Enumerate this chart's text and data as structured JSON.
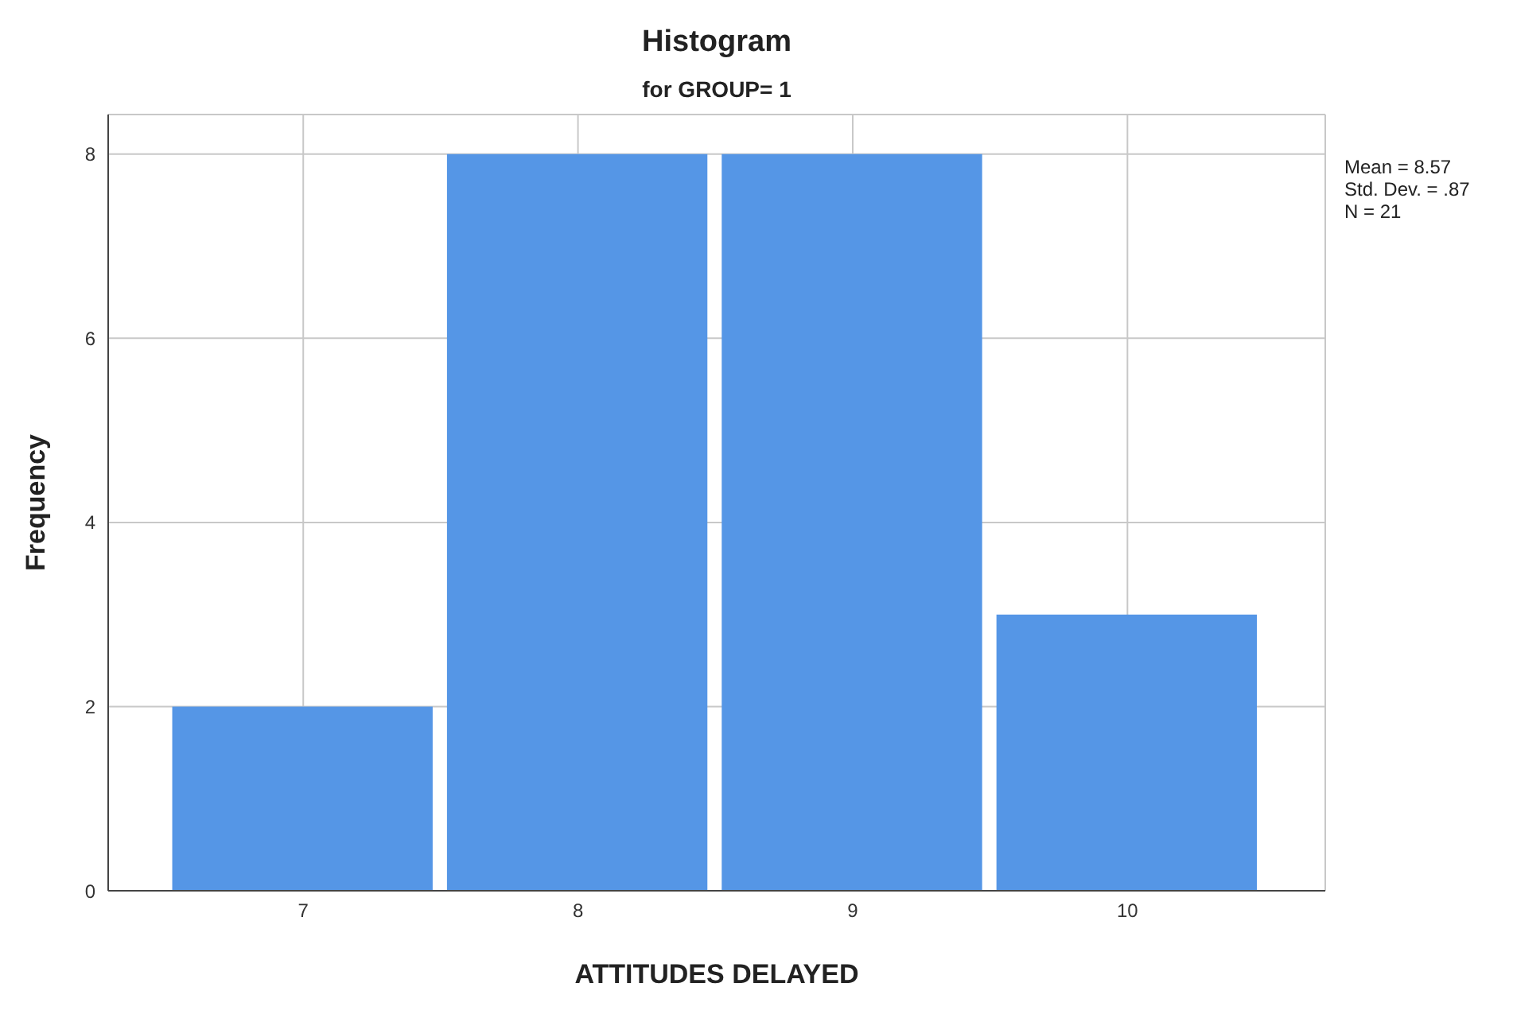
{
  "chart_data": {
    "type": "histogram",
    "title": "Histogram",
    "subtitle": "for GROUP= 1",
    "xlabel": "ATTITUDES DELAYED",
    "ylabel": "Frequency",
    "bins": [
      6.5,
      7.5,
      8.5,
      9.5,
      10.5
    ],
    "values": [
      2,
      8,
      8,
      3
    ],
    "color": "#5596e6",
    "xlim": [
      6.29,
      10.72
    ],
    "xticks": [
      7,
      8,
      9,
      10
    ],
    "ylim": [
      0,
      8.43
    ],
    "yticks": [
      0,
      2,
      4,
      6,
      8
    ],
    "grid": true,
    "annotations": [
      "Mean = 8.57",
      "Std. Dev. = .87",
      "N = 21"
    ]
  }
}
